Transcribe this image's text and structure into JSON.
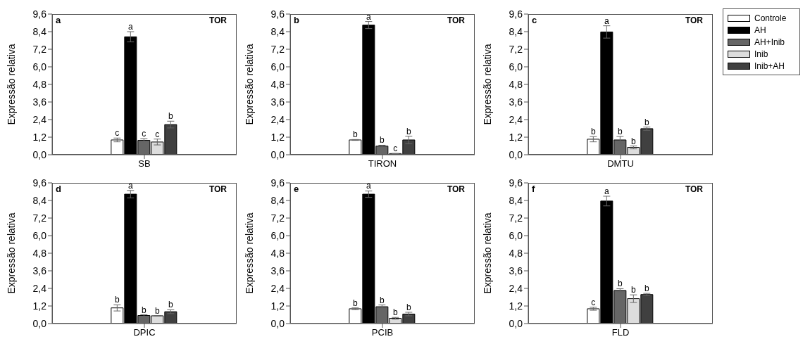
{
  "chart_data": [
    {
      "type": "bar",
      "title": "a",
      "annotations": [
        "TOR"
      ],
      "ylabel": "Expressão relativa",
      "categories": [
        "SB"
      ],
      "ylim": [
        0,
        9.6
      ],
      "yticks": [
        {
          "value": 0,
          "label": "0,0"
        },
        {
          "value": 1.2,
          "label": "1,2"
        },
        {
          "value": 2.4,
          "label": "2,4"
        },
        {
          "value": 3.6,
          "label": "3,6"
        },
        {
          "value": 4.8,
          "label": "4,8"
        },
        {
          "value": 6,
          "label": "6,0"
        },
        {
          "value": 7.2,
          "label": "7,2"
        },
        {
          "value": 8.4,
          "label": "8,4"
        },
        {
          "value": 9.6,
          "label": "9,6"
        }
      ],
      "legend": false,
      "series": [
        {
          "color": "#ffffff",
          "values": [
            1.01
          ],
          "errors": [
            0.13
          ],
          "value_labels": [
            "c"
          ]
        },
        {
          "color": "#000000",
          "values": [
            8.05
          ],
          "errors": [
            0.35
          ],
          "value_labels": [
            "a"
          ]
        },
        {
          "color": "#666666",
          "values": [
            0.98
          ],
          "errors": [
            0.12
          ],
          "value_labels": [
            "c"
          ]
        },
        {
          "color": "#dddddd",
          "values": [
            0.87
          ],
          "errors": [
            0.2
          ],
          "value_labels": [
            "c"
          ]
        },
        {
          "color": "#404040",
          "values": [
            2.06
          ],
          "errors": [
            0.23
          ],
          "value_labels": [
            "b"
          ]
        }
      ]
    },
    {
      "type": "bar",
      "title": "b",
      "annotations": [
        "TOR"
      ],
      "ylabel": "Expressão relativa",
      "categories": [
        "TIRON"
      ],
      "ylim": [
        0,
        9.6
      ],
      "yticks": [
        {
          "value": 0,
          "label": "0,0"
        },
        {
          "value": 1.2,
          "label": "1,2"
        },
        {
          "value": 2.4,
          "label": "2,4"
        },
        {
          "value": 3.6,
          "label": "3,6"
        },
        {
          "value": 4.8,
          "label": "4,8"
        },
        {
          "value": 6,
          "label": "6,0"
        },
        {
          "value": 7.2,
          "label": "7,2"
        },
        {
          "value": 8.4,
          "label": "8,4"
        },
        {
          "value": 9.6,
          "label": "9,6"
        }
      ],
      "legend": false,
      "series": [
        {
          "color": "#ffffff",
          "values": [
            1.01
          ],
          "errors": [
            0.03
          ],
          "value_labels": [
            "b"
          ]
        },
        {
          "color": "#000000",
          "values": [
            8.85
          ],
          "errors": [
            0.24
          ],
          "value_labels": [
            "a"
          ]
        },
        {
          "color": "#666666",
          "values": [
            0.59
          ],
          "errors": [
            0.06
          ],
          "value_labels": [
            "b"
          ]
        },
        {
          "color": "#dddddd",
          "values": [
            0.08
          ],
          "errors": [
            0.01
          ],
          "value_labels": [
            "c"
          ]
        },
        {
          "color": "#404040",
          "values": [
            1.01
          ],
          "errors": [
            0.26
          ],
          "value_labels": [
            "b"
          ]
        }
      ]
    },
    {
      "type": "bar",
      "title": "c",
      "annotations": [
        "TOR"
      ],
      "ylabel": "Expressão relativa",
      "categories": [
        "DMTU"
      ],
      "ylim": [
        0,
        9.6
      ],
      "yticks": [
        {
          "value": 0,
          "label": "0,0"
        },
        {
          "value": 1.2,
          "label": "1,2"
        },
        {
          "value": 2.4,
          "label": "2,4"
        },
        {
          "value": 3.6,
          "label": "3,6"
        },
        {
          "value": 4.8,
          "label": "4,8"
        },
        {
          "value": 6,
          "label": "6,0"
        },
        {
          "value": 7.2,
          "label": "7,2"
        },
        {
          "value": 8.4,
          "label": "8,4"
        },
        {
          "value": 9.6,
          "label": "9,6"
        }
      ],
      "legend": "right",
      "series": [
        {
          "name": "Controle",
          "color": "#ffffff",
          "values": [
            1.06
          ],
          "errors": [
            0.18
          ],
          "value_labels": [
            "b"
          ]
        },
        {
          "name": "AH",
          "color": "#000000",
          "values": [
            8.38
          ],
          "errors": [
            0.42
          ],
          "value_labels": [
            "a"
          ]
        },
        {
          "name": "AH+Inib",
          "color": "#666666",
          "values": [
            1.01
          ],
          "errors": [
            0.24
          ],
          "value_labels": [
            "b"
          ]
        },
        {
          "name": "Inib",
          "color": "#dddddd",
          "values": [
            0.5
          ],
          "errors": [
            0.1
          ],
          "value_labels": [
            "b"
          ]
        },
        {
          "name": "Inib+AH",
          "color": "#404040",
          "values": [
            1.78
          ],
          "errors": [
            0.11
          ],
          "value_labels": [
            "b"
          ]
        }
      ]
    },
    {
      "type": "bar",
      "title": "d",
      "annotations": [
        "TOR"
      ],
      "ylabel": "Expressão relativa",
      "categories": [
        "DPIC"
      ],
      "ylim": [
        0,
        9.6
      ],
      "yticks": [
        {
          "value": 0,
          "label": "0,0"
        },
        {
          "value": 1.2,
          "label": "1,2"
        },
        {
          "value": 2.4,
          "label": "2,4"
        },
        {
          "value": 3.6,
          "label": "3,6"
        },
        {
          "value": 4.8,
          "label": "4,8"
        },
        {
          "value": 6,
          "label": "6,0"
        },
        {
          "value": 7.2,
          "label": "7,2"
        },
        {
          "value": 8.4,
          "label": "8,4"
        },
        {
          "value": 9.6,
          "label": "9,6"
        }
      ],
      "legend": false,
      "series": [
        {
          "color": "#ffffff",
          "values": [
            1.07
          ],
          "errors": [
            0.21
          ],
          "value_labels": [
            "b"
          ]
        },
        {
          "color": "#000000",
          "values": [
            8.83
          ],
          "errors": [
            0.25
          ],
          "value_labels": [
            "a"
          ]
        },
        {
          "color": "#666666",
          "values": [
            0.55
          ],
          "errors": [
            0.05
          ],
          "value_labels": [
            "b"
          ]
        },
        {
          "color": "#dddddd",
          "values": [
            0.53
          ],
          "errors": [
            0.02
          ],
          "value_labels": [
            "b"
          ]
        },
        {
          "color": "#404040",
          "values": [
            0.81
          ],
          "errors": [
            0.13
          ],
          "value_labels": [
            "b"
          ]
        }
      ]
    },
    {
      "type": "bar",
      "title": "e",
      "annotations": [
        "TOR"
      ],
      "ylabel": "Expressão relativa",
      "categories": [
        "PCIB"
      ],
      "ylim": [
        0,
        9.6
      ],
      "yticks": [
        {
          "value": 0,
          "label": "0,0"
        },
        {
          "value": 1.2,
          "label": "1,2"
        },
        {
          "value": 2.4,
          "label": "2,4"
        },
        {
          "value": 3.6,
          "label": "3,6"
        },
        {
          "value": 4.8,
          "label": "4,8"
        },
        {
          "value": 6,
          "label": "6,0"
        },
        {
          "value": 7.2,
          "label": "7,2"
        },
        {
          "value": 8.4,
          "label": "8,4"
        },
        {
          "value": 9.6,
          "label": "9,6"
        }
      ],
      "legend": false,
      "series": [
        {
          "color": "#ffffff",
          "values": [
            1.01
          ],
          "errors": [
            0.06
          ],
          "value_labels": [
            "b"
          ]
        },
        {
          "color": "#000000",
          "values": [
            8.83
          ],
          "errors": [
            0.22
          ],
          "value_labels": [
            "a"
          ]
        },
        {
          "color": "#666666",
          "values": [
            1.15
          ],
          "errors": [
            0.12
          ],
          "value_labels": [
            "b"
          ]
        },
        {
          "color": "#dddddd",
          "values": [
            0.36
          ],
          "errors": [
            0.06
          ],
          "value_labels": [
            "b"
          ]
        },
        {
          "color": "#404040",
          "values": [
            0.65
          ],
          "errors": [
            0.12
          ],
          "value_labels": [
            "b"
          ]
        }
      ]
    },
    {
      "type": "bar",
      "title": "f",
      "annotations": [
        "TOR"
      ],
      "ylabel": "Expressão relativa",
      "categories": [
        "FLD"
      ],
      "ylim": [
        0,
        9.6
      ],
      "yticks": [
        {
          "value": 0,
          "label": "0,0"
        },
        {
          "value": 1.2,
          "label": "1,2"
        },
        {
          "value": 2.4,
          "label": "2,4"
        },
        {
          "value": 3.6,
          "label": "3,6"
        },
        {
          "value": 4.8,
          "label": "4,8"
        },
        {
          "value": 6,
          "label": "6,0"
        },
        {
          "value": 7.2,
          "label": "7,2"
        },
        {
          "value": 8.4,
          "label": "8,4"
        },
        {
          "value": 9.6,
          "label": "9,6"
        }
      ],
      "legend": false,
      "series": [
        {
          "color": "#ffffff",
          "values": [
            1.01
          ],
          "errors": [
            0.1
          ],
          "value_labels": [
            "c"
          ]
        },
        {
          "color": "#000000",
          "values": [
            8.36
          ],
          "errors": [
            0.33
          ],
          "value_labels": [
            "a"
          ]
        },
        {
          "color": "#666666",
          "values": [
            2.26
          ],
          "errors": [
            0.12
          ],
          "value_labels": [
            "b"
          ]
        },
        {
          "color": "#dddddd",
          "values": [
            1.7
          ],
          "errors": [
            0.26
          ],
          "value_labels": [
            "b"
          ]
        },
        {
          "color": "#404040",
          "values": [
            1.98
          ],
          "errors": [
            0.08
          ],
          "value_labels": [
            "b"
          ]
        }
      ]
    }
  ]
}
